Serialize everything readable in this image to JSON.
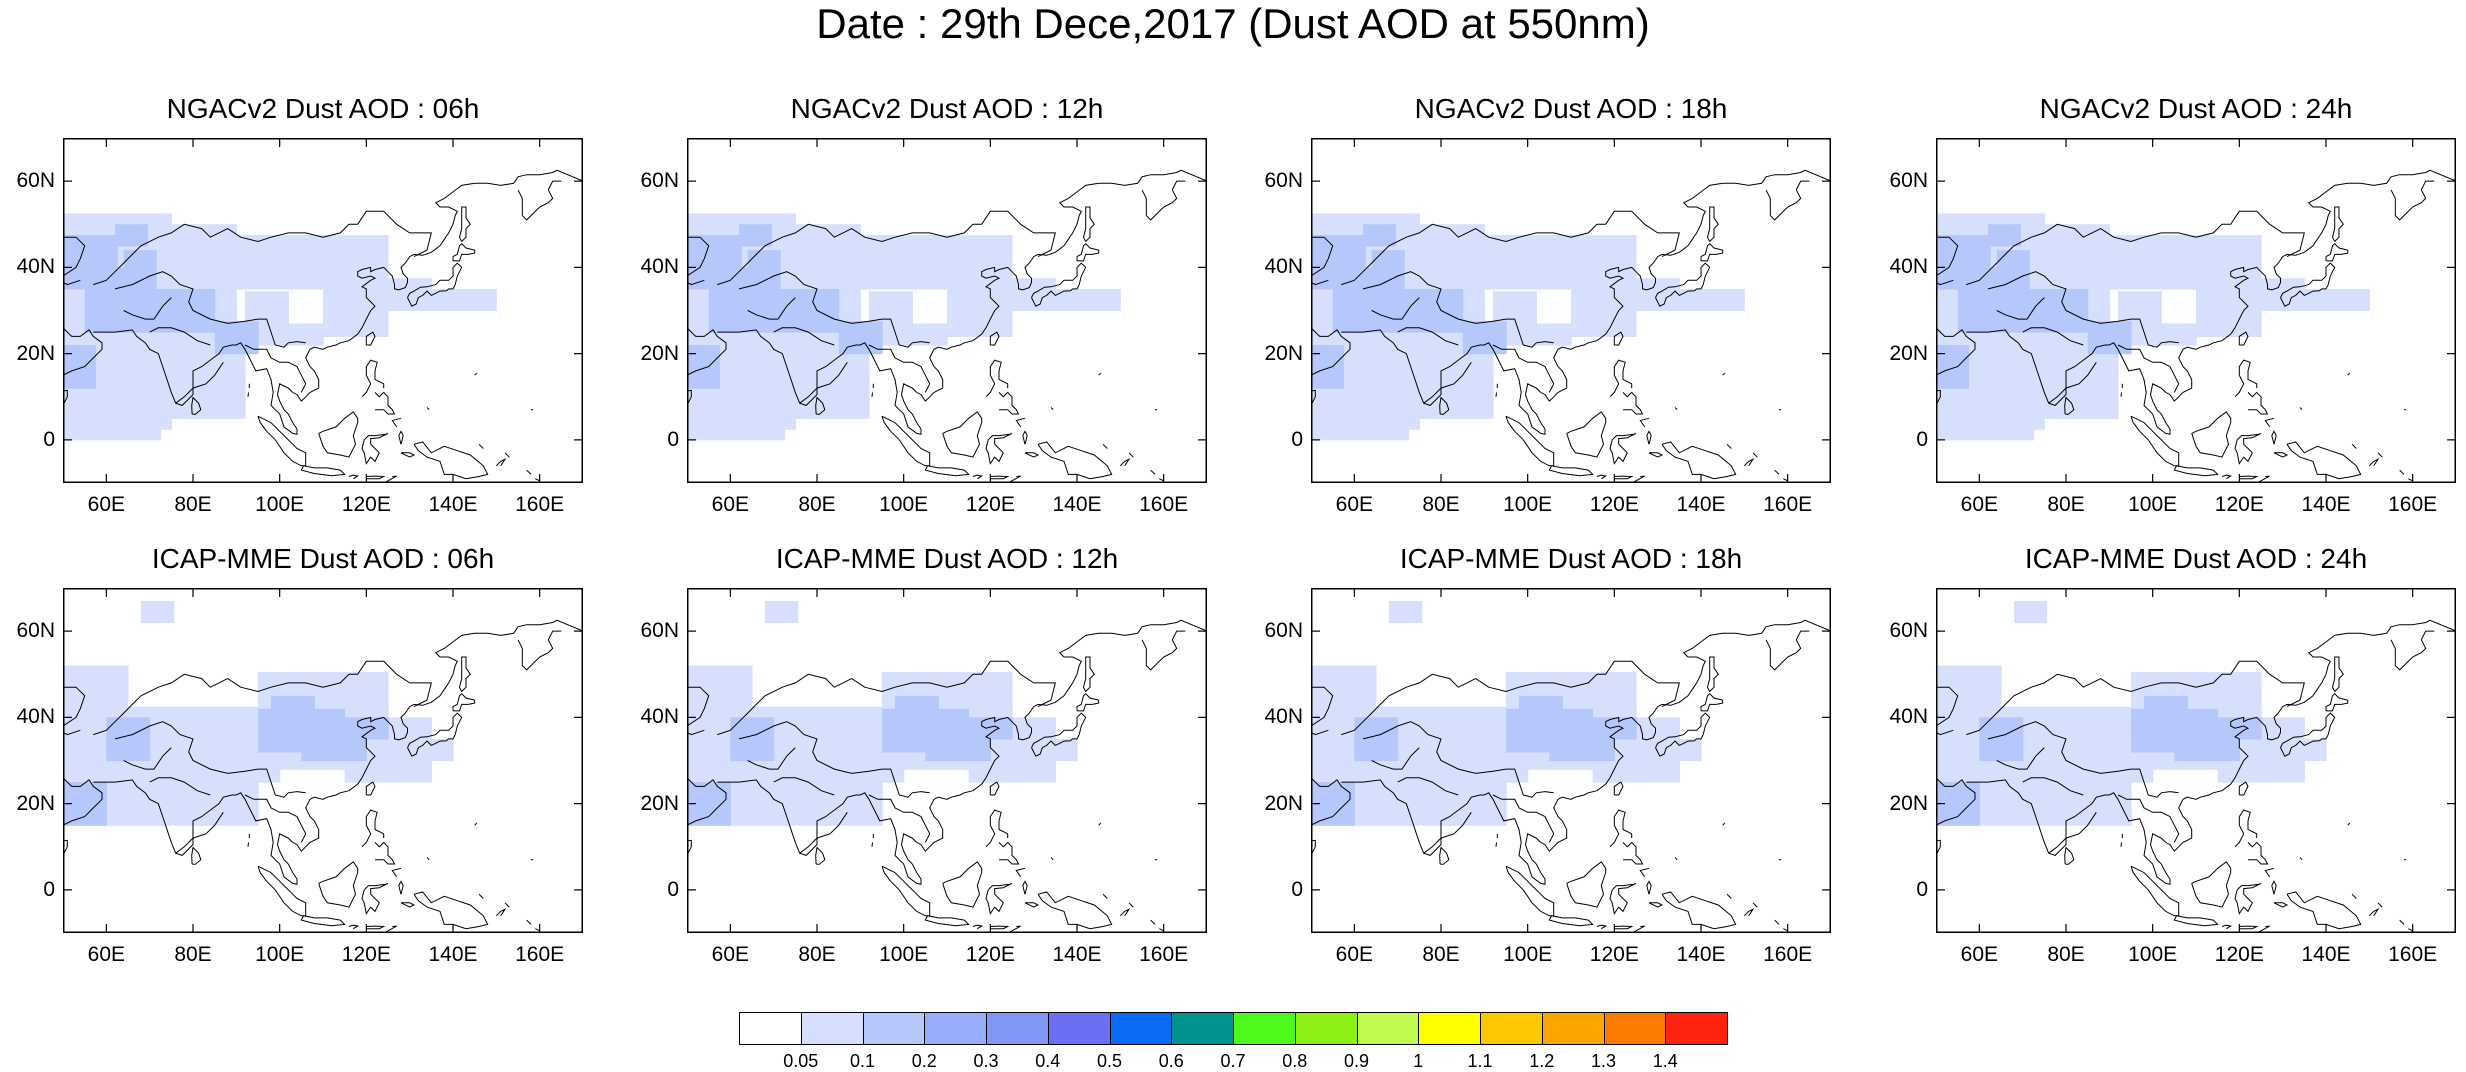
{
  "title": "Date : 29th Dece,2017 (Dust AOD at 550nm)",
  "panels": [
    {
      "title": "NGACv2 Dust AOD : 06h",
      "model": "NGACv2"
    },
    {
      "title": "NGACv2 Dust AOD : 12h",
      "model": "NGACv2"
    },
    {
      "title": "NGACv2 Dust AOD : 18h",
      "model": "NGACv2"
    },
    {
      "title": "NGACv2 Dust AOD : 24h",
      "model": "NGACv2"
    },
    {
      "title": "ICAP-MME Dust AOD : 06h",
      "model": "ICAP"
    },
    {
      "title": "ICAP-MME Dust AOD : 12h",
      "model": "ICAP"
    },
    {
      "title": "ICAP-MME Dust AOD : 18h",
      "model": "ICAP"
    },
    {
      "title": "ICAP-MME Dust AOD : 24h",
      "model": "ICAP"
    }
  ],
  "axes": {
    "lat_ticks": [
      "60N",
      "40N",
      "20N",
      "0"
    ],
    "lon_ticks": [
      "60E",
      "80E",
      "100E",
      "120E",
      "140E",
      "160E"
    ]
  },
  "colorbar": {
    "colors": [
      "#ffffff",
      "#d6e0fd",
      "#b6c7fb",
      "#95adfa",
      "#8097f8",
      "#6a6ff3",
      "#0a6cf4",
      "#009490",
      "#4ef91c",
      "#8df014",
      "#c3fa50",
      "#ffff00",
      "#fdc800",
      "#fda400",
      "#fb7a00",
      "#ff2311"
    ],
    "labels": [
      "0.05",
      "0.1",
      "0.2",
      "0.3",
      "0.4",
      "0.5",
      "0.6",
      "0.7",
      "0.8",
      "0.9",
      "1",
      "1.1",
      "1.2",
      "1.3",
      "1.4"
    ]
  }
}
